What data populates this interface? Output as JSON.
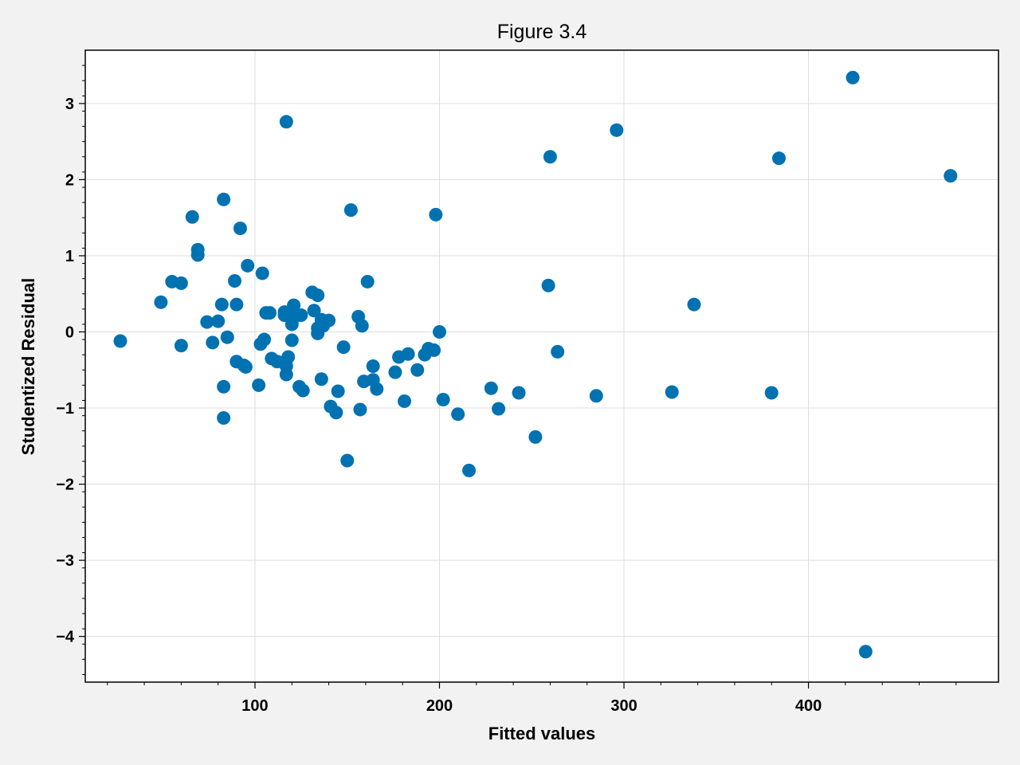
{
  "chart_data": {
    "type": "scatter",
    "title": "Figure 3.4",
    "xlabel": "Fitted values",
    "ylabel": "Studentized Residual",
    "xlim": [
      8,
      503
    ],
    "ylim": [
      -4.6,
      3.7
    ],
    "xticks": [
      100,
      200,
      300,
      400
    ],
    "yticks": [
      -4,
      -3,
      -2,
      -1,
      0,
      1,
      2,
      3
    ],
    "grid": true,
    "legend": "none",
    "marker_color": "#0072b2",
    "series": [
      {
        "points": [
          [
            27,
            -0.12
          ],
          [
            49,
            0.39
          ],
          [
            55,
            0.66
          ],
          [
            60,
            0.64
          ],
          [
            60,
            -0.18
          ],
          [
            66,
            1.51
          ],
          [
            69,
            1.08
          ],
          [
            69,
            1.01
          ],
          [
            74,
            0.13
          ],
          [
            77,
            -0.14
          ],
          [
            80,
            0.14
          ],
          [
            82,
            0.36
          ],
          [
            83,
            1.74
          ],
          [
            83,
            -0.72
          ],
          [
            83,
            -1.13
          ],
          [
            85,
            -0.07
          ],
          [
            89,
            0.67
          ],
          [
            90,
            0.36
          ],
          [
            90,
            -0.39
          ],
          [
            92,
            1.36
          ],
          [
            94,
            -0.44
          ],
          [
            95,
            -0.46
          ],
          [
            96,
            0.87
          ],
          [
            102,
            -0.7
          ],
          [
            103,
            -0.16
          ],
          [
            104,
            0.77
          ],
          [
            105,
            -0.1
          ],
          [
            106,
            0.25
          ],
          [
            108,
            0.25
          ],
          [
            109,
            -0.35
          ],
          [
            112,
            -0.39
          ],
          [
            116,
            0.26
          ],
          [
            116,
            0.22
          ],
          [
            117,
            2.76
          ],
          [
            117,
            -0.45
          ],
          [
            117,
            -0.56
          ],
          [
            118,
            -0.33
          ],
          [
            119,
            0.21
          ],
          [
            120,
            0.1
          ],
          [
            120,
            -0.11
          ],
          [
            121,
            0.35
          ],
          [
            122,
            0.21
          ],
          [
            124,
            -0.72
          ],
          [
            125,
            0.22
          ],
          [
            126,
            -0.77
          ],
          [
            131,
            0.52
          ],
          [
            132,
            0.28
          ],
          [
            134,
            0.48
          ],
          [
            134,
            0.05
          ],
          [
            134,
            -0.02
          ],
          [
            136,
            0.16
          ],
          [
            136,
            -0.62
          ],
          [
            137,
            0.08
          ],
          [
            140,
            0.15
          ],
          [
            141,
            -0.98
          ],
          [
            144,
            -1.06
          ],
          [
            145,
            -0.78
          ],
          [
            148,
            -0.2
          ],
          [
            150,
            -1.69
          ],
          [
            152,
            1.6
          ],
          [
            156,
            0.2
          ],
          [
            157,
            -1.02
          ],
          [
            158,
            0.08
          ],
          [
            159,
            -0.65
          ],
          [
            161,
            0.66
          ],
          [
            164,
            -0.45
          ],
          [
            164,
            -0.63
          ],
          [
            166,
            -0.75
          ],
          [
            176,
            -0.53
          ],
          [
            178,
            -0.33
          ],
          [
            181,
            -0.91
          ],
          [
            183,
            -0.29
          ],
          [
            188,
            -0.5
          ],
          [
            192,
            -0.3
          ],
          [
            194,
            -0.22
          ],
          [
            197,
            -0.24
          ],
          [
            198,
            1.54
          ],
          [
            200,
            0.0
          ],
          [
            202,
            -0.89
          ],
          [
            210,
            -1.08
          ],
          [
            216,
            -1.82
          ],
          [
            228,
            -0.74
          ],
          [
            232,
            -1.01
          ],
          [
            243,
            -0.8
          ],
          [
            252,
            -1.38
          ],
          [
            259,
            0.61
          ],
          [
            260,
            2.3
          ],
          [
            264,
            -0.26
          ],
          [
            285,
            -0.84
          ],
          [
            296,
            2.65
          ],
          [
            326,
            -0.79
          ],
          [
            338,
            0.36
          ],
          [
            380,
            -0.8
          ],
          [
            384,
            2.28
          ],
          [
            424,
            3.34
          ],
          [
            431,
            -4.2
          ],
          [
            477,
            2.05
          ]
        ]
      }
    ]
  }
}
